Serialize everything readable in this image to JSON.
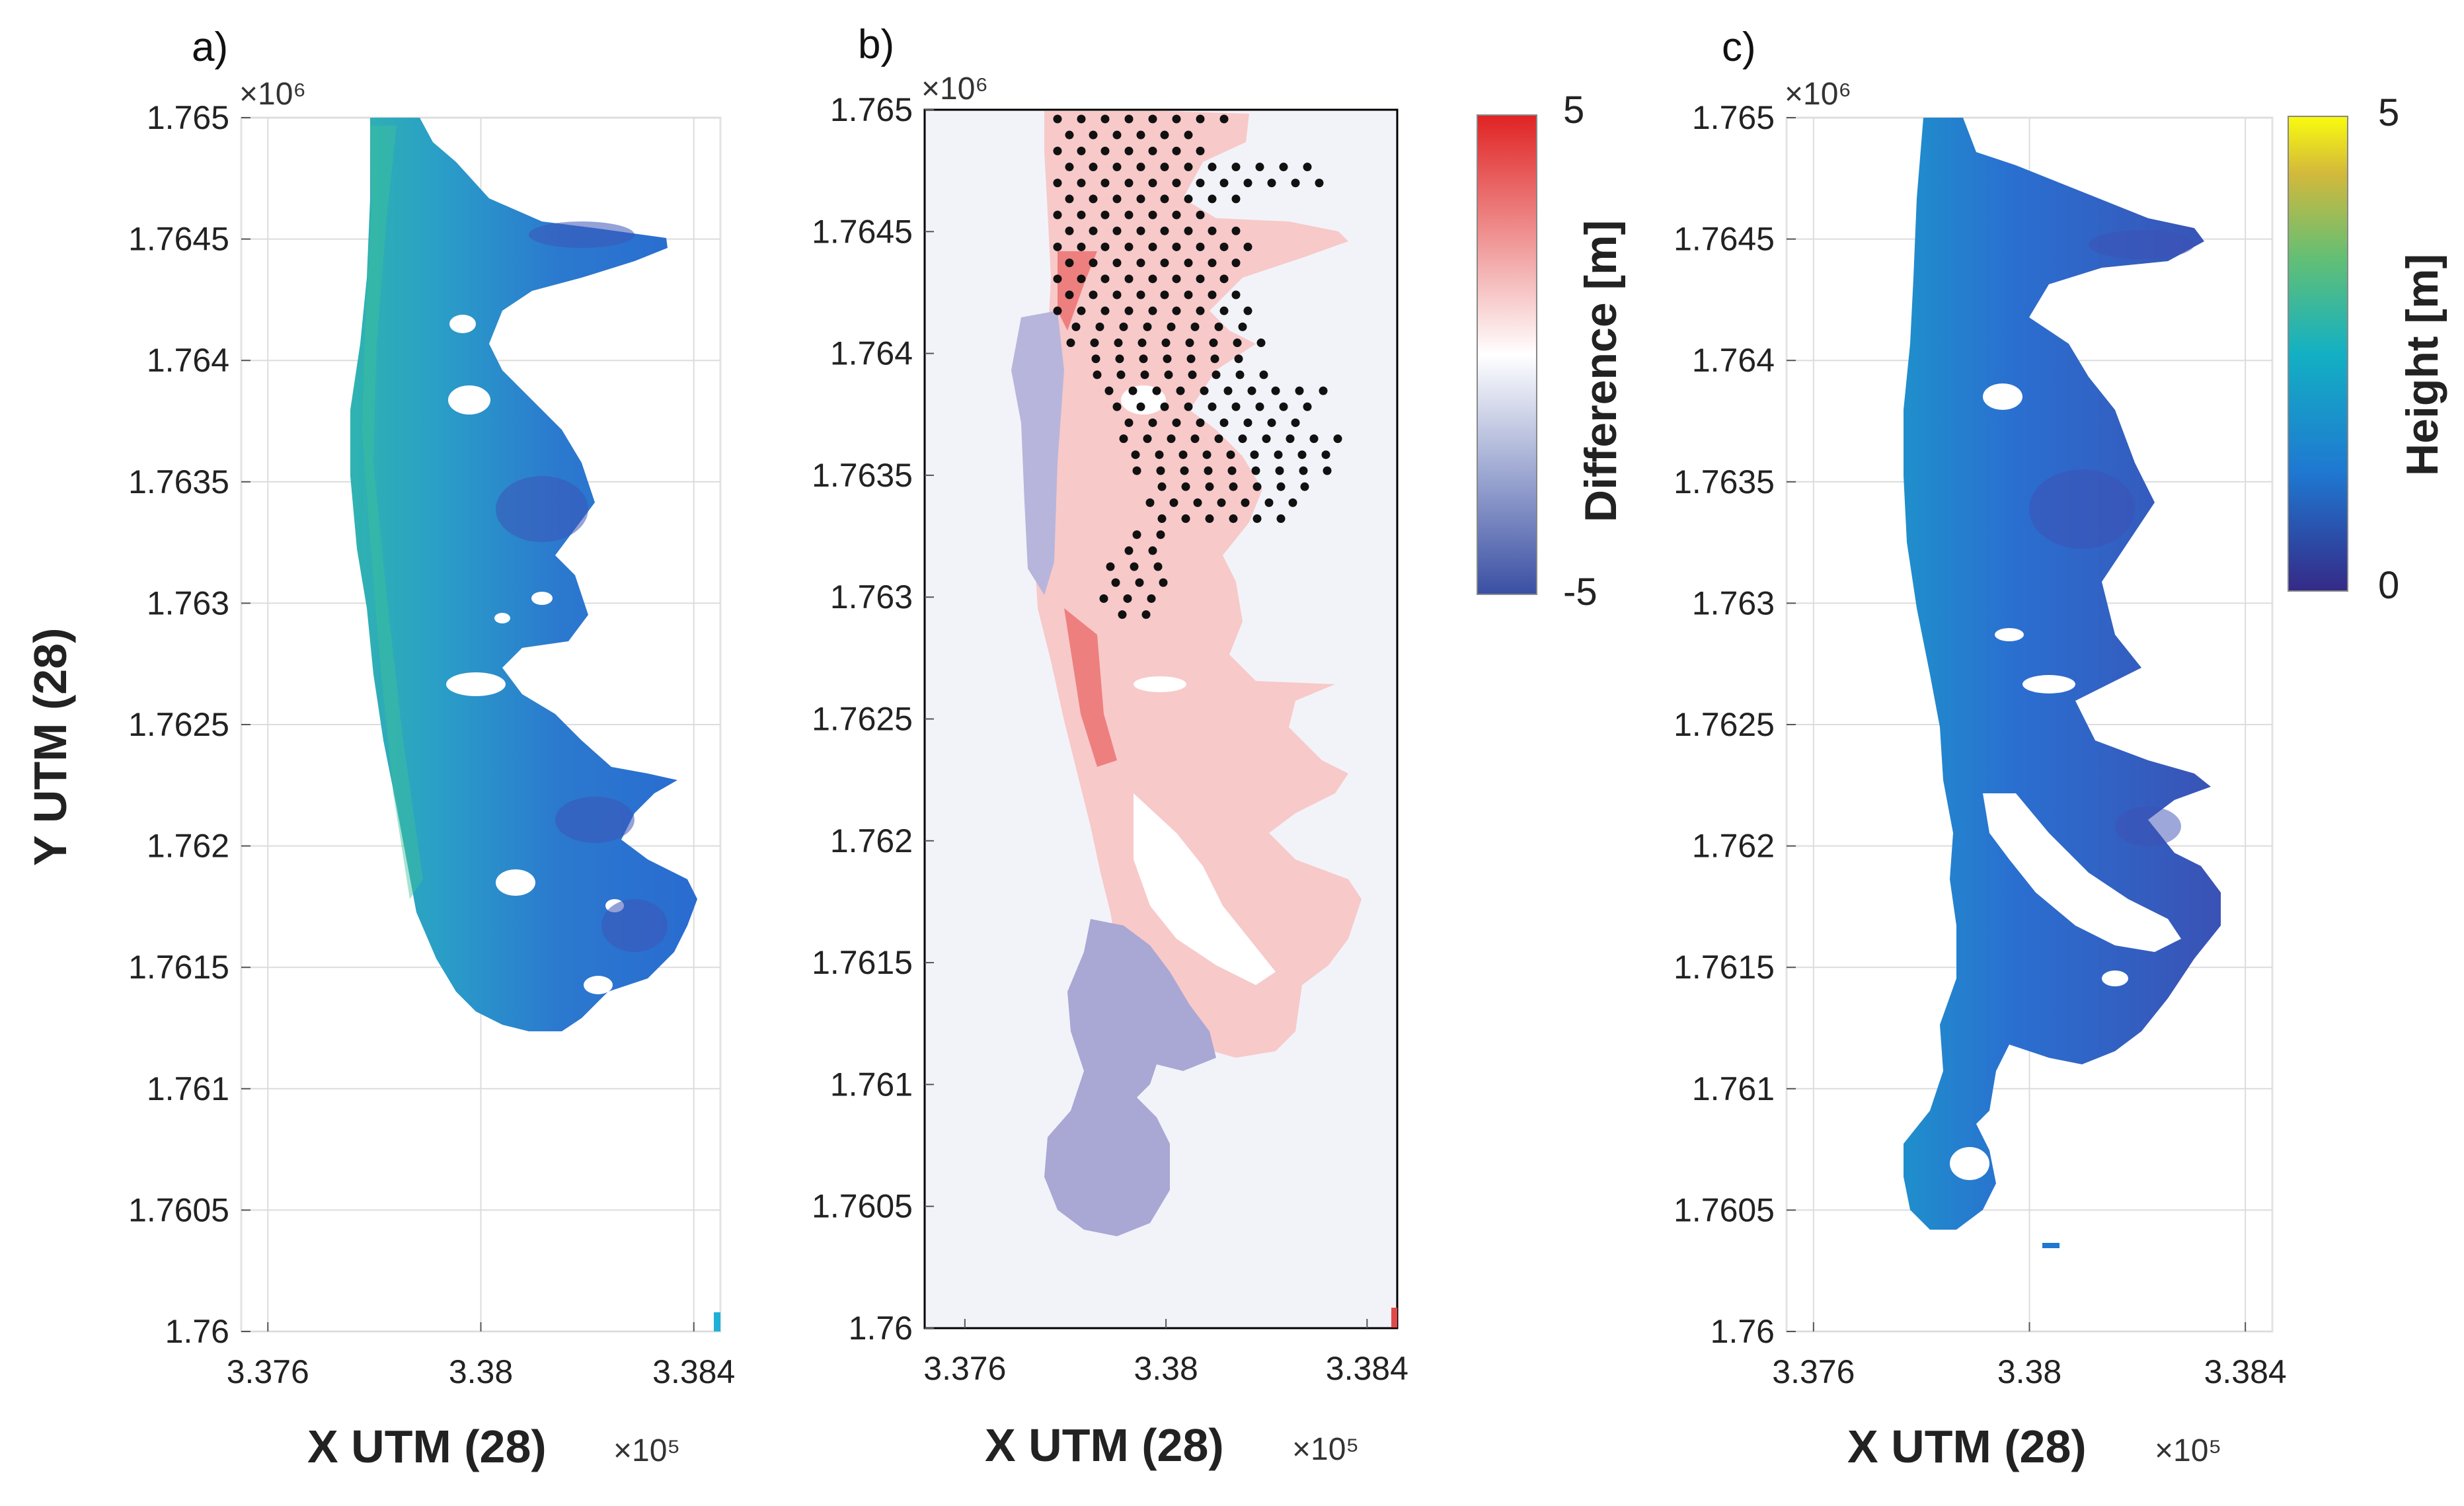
{
  "chart_data": [
    {
      "panel": "a)",
      "type": "heatmap",
      "xlabel": "X UTM (28)",
      "ylabel": "Y UTM (28)",
      "x_exponent_label": "×10⁵",
      "y_exponent_label": "×10⁶",
      "xlim": [
        3.3755,
        3.3845
      ],
      "ylim": [
        1.76,
        1.765
      ],
      "xticks": [
        3.376,
        3.38,
        3.384
      ],
      "xtick_labels": [
        "3.376",
        "3.38",
        "3.384"
      ],
      "yticks": [
        1.76,
        1.7605,
        1.761,
        1.7615,
        1.762,
        1.7625,
        1.763,
        1.7635,
        1.764,
        1.7645,
        1.765
      ],
      "ytick_labels": [
        "1.76",
        "1.7605",
        "1.761",
        "1.7615",
        "1.762",
        "1.7625",
        "1.763",
        "1.7635",
        "1.764",
        "1.7645",
        "1.765"
      ],
      "grid": true,
      "colormap": "parula",
      "clim": [
        0,
        5
      ]
    },
    {
      "panel": "b)",
      "type": "heatmap",
      "xlabel": "X UTM (28)",
      "x_exponent_label": "×10⁵",
      "y_exponent_label": "×10⁶",
      "xlim": [
        3.3752,
        3.3846
      ],
      "ylim": [
        1.76,
        1.765
      ],
      "xticks": [
        3.376,
        3.38,
        3.384
      ],
      "xtick_labels": [
        "3.376",
        "3.38",
        "3.384"
      ],
      "yticks": [
        1.76,
        1.7605,
        1.761,
        1.7615,
        1.762,
        1.7625,
        1.763,
        1.7635,
        1.764,
        1.7645,
        1.765
      ],
      "ytick_labels": [
        "1.76",
        "1.7605",
        "1.761",
        "1.7615",
        "1.762",
        "1.7625",
        "1.763",
        "1.7635",
        "1.764",
        "1.7645",
        "1.765"
      ],
      "grid": false,
      "colormap": "blue-white-red",
      "colorbar": {
        "label": "Difference [m]",
        "min": -5,
        "max": 5,
        "min_label": "-5",
        "max_label": "5",
        "colors": [
          "#3a4fa3",
          "#ffffff",
          "#e02323"
        ]
      },
      "markers": "black dots on regular sample grid"
    },
    {
      "panel": "c)",
      "type": "heatmap",
      "xlabel": "X UTM (28)",
      "x_exponent_label": "×10⁵",
      "y_exponent_label": "×10⁶",
      "xlim": [
        3.3755,
        3.3845
      ],
      "ylim": [
        1.76,
        1.765
      ],
      "xticks": [
        3.376,
        3.38,
        3.384
      ],
      "xtick_labels": [
        "3.376",
        "3.38",
        "3.384"
      ],
      "yticks": [
        1.76,
        1.7605,
        1.761,
        1.7615,
        1.762,
        1.7625,
        1.763,
        1.7635,
        1.764,
        1.7645,
        1.765
      ],
      "ytick_labels": [
        "1.76",
        "1.7605",
        "1.761",
        "1.7615",
        "1.762",
        "1.7625",
        "1.763",
        "1.7635",
        "1.764",
        "1.7645",
        "1.765"
      ],
      "grid": true,
      "colormap": "parula",
      "colorbar": {
        "label": "Height [m]",
        "min": 0,
        "max": 5,
        "min_label": "0",
        "max_label": "5",
        "colors": [
          "#352a87",
          "#1f78d1",
          "#13b0c4",
          "#62bf75",
          "#d3b93b",
          "#f9fb0e"
        ]
      }
    }
  ]
}
